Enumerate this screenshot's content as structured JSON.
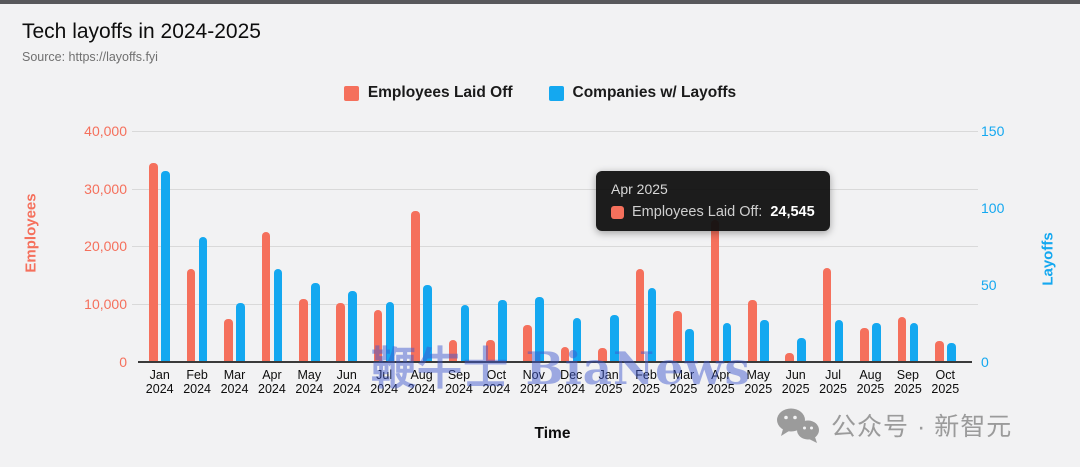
{
  "header": {
    "title": "Tech layoffs in 2024-2025",
    "source": "Source: https://layoffs.fyi"
  },
  "legend": {
    "items": [
      {
        "label": "Employees Laid Off",
        "color": "#f5705c"
      },
      {
        "label": "Companies w/ Layoffs",
        "color": "#14a8f0"
      }
    ]
  },
  "tooltip": {
    "title": "Apr 2025",
    "series_label": "Employees Laid Off:",
    "value": "24,545",
    "swatch_color": "#f5705c",
    "background": "#101010"
  },
  "watermark": {
    "text": "鞭牛士 BiaNews",
    "color": "#3e58cd"
  },
  "footer": {
    "wechat_label": "公众号 · 新智元"
  },
  "chart_data": {
    "type": "bar",
    "title": "Tech layoffs in 2024-2025",
    "xlabel": "Time",
    "categories": [
      "Jan 2024",
      "Feb 2024",
      "Mar 2024",
      "Apr 2024",
      "May 2024",
      "Jun 2024",
      "Jul 2024",
      "Aug 2024",
      "Sep 2024",
      "Oct 2024",
      "Nov 2024",
      "Dec 2024",
      "Jan 2025",
      "Feb 2025",
      "Mar 2025",
      "Apr 2025",
      "May 2025",
      "Jun 2025",
      "Jul 2025",
      "Aug 2025",
      "Sep 2025",
      "Oct 2025"
    ],
    "series": [
      {
        "name": "Employees Laid Off",
        "axis": "left",
        "color": "#f5705c",
        "values": [
          34400,
          16000,
          7400,
          22400,
          10900,
          10200,
          9000,
          26100,
          3800,
          3700,
          6400,
          2600,
          2400,
          16100,
          8800,
          24545,
          10600,
          1500,
          16300,
          5800,
          7800,
          3500
        ]
      },
      {
        "name": "Companies w/ Layoffs",
        "axis": "right",
        "color": "#14a8f0",
        "values": [
          124,
          81,
          38,
          60,
          51,
          46,
          39,
          50,
          37,
          40,
          42,
          28,
          30,
          48,
          21,
          25,
          27,
          15,
          27,
          25,
          25,
          12
        ]
      }
    ],
    "left_axis": {
      "label": "Employees",
      "color": "#f5705c",
      "max": 40000,
      "tick_values": [
        0,
        10000,
        20000,
        30000,
        40000
      ],
      "tick_labels": [
        "0",
        "10,000",
        "20,000",
        "30,000",
        "40,000"
      ]
    },
    "right_axis": {
      "label": "Layoffs",
      "color": "#14a8f0",
      "max": 150,
      "tick_values": [
        0,
        50,
        100,
        150
      ],
      "tick_labels": [
        "0",
        "50",
        "100",
        "150"
      ]
    },
    "grid": true,
    "legend_position": "top"
  }
}
